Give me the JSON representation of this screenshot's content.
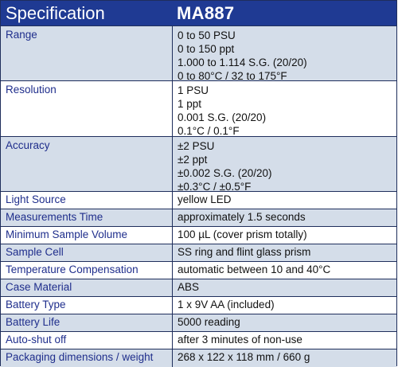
{
  "header": {
    "left": "Specification",
    "right": "MA887"
  },
  "rows": [
    {
      "label": "Range",
      "lines": [
        "0 to 50 PSU",
        "0 to 150 ppt",
        "1.000 to 1.114 S.G. (20/20)",
        "0 to 80°C / 32 to 175°F"
      ]
    },
    {
      "label": "Resolution",
      "lines": [
        "1 PSU",
        "1 ppt",
        "0.001 S.G. (20/20)",
        "0.1°C / 0.1°F"
      ]
    },
    {
      "label": "Accuracy",
      "lines": [
        "±2 PSU",
        "±2 ppt",
        "±0.002 S.G. (20/20)",
        "±0.3°C / ±0.5°F"
      ]
    },
    {
      "label": "Light Source",
      "lines": [
        "yellow LED"
      ]
    },
    {
      "label": "Measurements Time",
      "lines": [
        "approximately 1.5 seconds"
      ]
    },
    {
      "label": "Minimum Sample Volume",
      "lines": [
        "100 µL (cover prism totally)"
      ]
    },
    {
      "label": "Sample Cell",
      "lines": [
        "SS ring and flint glass prism"
      ]
    },
    {
      "label": "Temperature Compensation",
      "lines": [
        "automatic between 10 and 40°C"
      ]
    },
    {
      "label": "Case Material",
      "lines": [
        "ABS"
      ]
    },
    {
      "label": "Battery Type",
      "lines": [
        "1 x 9V AA (included)"
      ]
    },
    {
      "label": "Battery Life",
      "lines": [
        "5000 reading"
      ]
    },
    {
      "label": "Auto-shut off",
      "lines": [
        "after 3 minutes of non-use"
      ]
    },
    {
      "label": "Packaging dimensions / weight",
      "lines": [
        "268 x 122 x 118 mm / 660 g"
      ]
    }
  ]
}
